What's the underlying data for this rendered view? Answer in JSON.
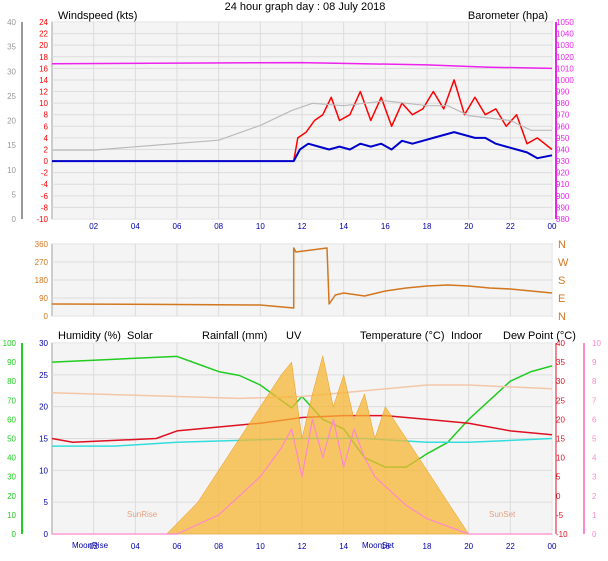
{
  "title": "24 hour graph day : 08 July 2018",
  "x_ticks": [
    "02",
    "04",
    "06",
    "08",
    "10",
    "12",
    "14",
    "16",
    "18",
    "20",
    "22",
    "00"
  ],
  "colors": {
    "windspeed": "#ff0000",
    "wind_avg": "#0000cc",
    "barometer": "#ee22ee",
    "wind_dir": "#d2771f",
    "humidity": "#22cc22",
    "solar": "#f7b734",
    "rainfall": "#0000aa",
    "uv": "#ff88cc",
    "temperature": "#dd1122",
    "indoor": "#f4c6a8",
    "dew_point": "#33dddd",
    "baro_shadow": "#bbbbbb"
  },
  "chart_data": [
    {
      "type": "line",
      "panel": "wind-baro",
      "left_axis_label": "Windspeed (kts)",
      "right_axis_label": "Barometer (hpa)",
      "left_ticks": [
        "24",
        "22",
        "20",
        "18",
        "16",
        "14",
        "12",
        "10",
        "8",
        "6",
        "4",
        "2",
        "0",
        "-2",
        "-4",
        "-6",
        "-8",
        "-10"
      ],
      "right_ticks": [
        "1050",
        "1040",
        "1030",
        "1020",
        "1010",
        "1000",
        "990",
        "980",
        "970",
        "960",
        "950",
        "940",
        "930",
        "920",
        "910",
        "900",
        "890",
        "880"
      ],
      "grey_axis_ticks": [
        "40",
        "35",
        "30",
        "25",
        "20",
        "15",
        "10",
        "5",
        "0"
      ],
      "ylim_left": [
        -10,
        24
      ],
      "ylim_right": [
        880,
        1050
      ],
      "xlim": [
        0,
        24
      ],
      "series": [
        {
          "key": "barometer",
          "axis": "right",
          "x": [
            0,
            6,
            12,
            18,
            21,
            24
          ],
          "y": [
            1014,
            1014.5,
            1015,
            1013,
            1011,
            1010
          ]
        },
        {
          "key": "gust",
          "axis": "left",
          "x": [
            0,
            11.6,
            11.8,
            12.2,
            12.6,
            13,
            13.4,
            13.8,
            14.3,
            14.8,
            15.3,
            15.8,
            16.3,
            16.8,
            17.3,
            17.8,
            18.3,
            18.8,
            19.3,
            19.8,
            20.3,
            20.8,
            21.3,
            21.8,
            22.3,
            22.8,
            23.3,
            24
          ],
          "y": [
            0,
            0,
            4,
            5,
            7,
            8,
            11,
            7,
            8,
            12,
            7,
            11,
            6,
            10,
            8,
            9,
            12,
            9,
            14,
            8,
            11,
            8,
            9,
            6,
            8,
            3,
            4,
            2
          ]
        },
        {
          "key": "average",
          "axis": "left",
          "x": [
            0,
            11.6,
            11.9,
            12.3,
            12.8,
            13.3,
            13.8,
            14.3,
            14.8,
            15.3,
            15.8,
            16.3,
            16.8,
            17.3,
            17.8,
            18.3,
            18.8,
            19.3,
            19.8,
            20.3,
            20.8,
            21.3,
            21.8,
            22.3,
            22.8,
            23.3,
            24
          ],
          "y": [
            0,
            0,
            2,
            3,
            2.5,
            2,
            2.5,
            2,
            3,
            2.5,
            3,
            2,
            3.5,
            3,
            3.5,
            4,
            4.5,
            5,
            4.5,
            4,
            4,
            3,
            2.5,
            2,
            1.5,
            0.5,
            1
          ]
        },
        {
          "key": "baro_shadow",
          "axis": "grey",
          "x": [
            0,
            2,
            5,
            8,
            10,
            11.5,
            12.5,
            14,
            16,
            18,
            19,
            20,
            22,
            23,
            24
          ],
          "y": [
            14,
            14,
            15,
            16,
            19,
            22,
            23.5,
            23,
            24,
            23,
            23,
            21,
            20,
            18,
            18
          ]
        }
      ]
    },
    {
      "type": "line",
      "panel": "wind-direction",
      "left_ticks": [
        "360",
        "270",
        "180",
        "90",
        "0"
      ],
      "right_ticks": [
        "N",
        "W",
        "S",
        "E",
        "N"
      ],
      "ylim": [
        0,
        360
      ],
      "xlim": [
        0,
        24
      ],
      "series": [
        {
          "key": "wind_dir",
          "x": [
            0,
            5,
            10,
            11.6,
            11.6,
            11.7,
            13.2,
            13.3,
            13.6,
            14,
            15,
            16,
            17,
            18,
            19,
            20,
            21,
            22,
            23,
            24
          ],
          "y": [
            60,
            58,
            55,
            40,
            340,
            320,
            340,
            60,
            105,
            115,
            100,
            125,
            140,
            150,
            155,
            150,
            140,
            135,
            125,
            115
          ]
        }
      ]
    },
    {
      "type": "area",
      "panel": "temp-humidity-solar",
      "legend": [
        "Humidity (%)",
        "Solar",
        "Rainfall (mm)",
        "UV",
        "Temperature (°C)",
        "Indoor",
        "Dew Point (°C)"
      ],
      "humidity_ticks": [
        "100",
        "90",
        "80",
        "70",
        "60",
        "50",
        "40",
        "30",
        "20",
        "10",
        "0"
      ],
      "left_ticks": [
        "30",
        "25",
        "20",
        "15",
        "10",
        "5",
        "0"
      ],
      "temp_ticks": [
        "40",
        "35",
        "30",
        "25",
        "20",
        "15",
        "10",
        "5",
        "0",
        "-5",
        "-10"
      ],
      "uv_ticks": [
        "10",
        "9",
        "8",
        "7",
        "6",
        "5",
        "4",
        "3",
        "2",
        "1",
        "0"
      ],
      "xlim": [
        0,
        24
      ],
      "ylim_temperature": [
        -10,
        40
      ],
      "ylim_humidity": [
        0,
        100
      ],
      "annotations": [
        "MoonRise",
        "SunRise",
        "MoonSet",
        "SunSet"
      ],
      "series": [
        {
          "key": "humidity",
          "x": [
            0,
            2,
            4,
            6,
            7,
            8,
            9,
            10,
            11,
            11.5,
            12,
            13,
            14,
            15,
            16,
            17,
            18,
            19,
            20,
            21,
            22,
            23,
            24
          ],
          "y": [
            90,
            91,
            92,
            93,
            89,
            85,
            83,
            78,
            70,
            66,
            72,
            60,
            55,
            40,
            35,
            35,
            42,
            48,
            60,
            70,
            80,
            85,
            88
          ]
        },
        {
          "key": "temperature",
          "x": [
            0,
            1,
            3,
            5,
            6,
            8,
            10,
            12,
            14,
            16,
            18,
            20,
            22,
            24
          ],
          "y": [
            15,
            14,
            14.5,
            15,
            17,
            18,
            19,
            20.5,
            21,
            21,
            20,
            19,
            17,
            16
          ]
        },
        {
          "key": "indoor",
          "x": [
            0,
            3,
            6,
            9,
            12,
            15,
            18,
            20,
            22,
            24
          ],
          "y": [
            27,
            26.5,
            26,
            25.5,
            26,
            27.5,
            29,
            29,
            28.5,
            28
          ]
        },
        {
          "key": "dew_point",
          "x": [
            0,
            3,
            6,
            9,
            12,
            15,
            18,
            20,
            22,
            24
          ],
          "y": [
            13,
            13,
            14,
            14.5,
            15,
            15,
            14,
            14,
            14.5,
            15
          ]
        },
        {
          "key": "solar",
          "x": [
            5.5,
            7,
            8,
            9,
            10,
            11,
            11.5,
            12,
            12.5,
            13,
            13.5,
            14,
            14.5,
            15,
            15.5,
            16,
            17,
            18,
            19,
            20
          ],
          "y": [
            0,
            5,
            10,
            15,
            20,
            25,
            27,
            15,
            22,
            28,
            20,
            25,
            18,
            22,
            15,
            20,
            15,
            10,
            5,
            0
          ]
        },
        {
          "key": "uv",
          "x": [
            0,
            6,
            8,
            10,
            11,
            11.5,
            12,
            12.5,
            13,
            13.5,
            14,
            14.5,
            15,
            15.5,
            16,
            17,
            18,
            20,
            24
          ],
          "y": [
            0,
            0,
            1,
            3,
            4.5,
            5.5,
            3,
            6,
            4,
            6,
            3.5,
            5.5,
            4,
            3,
            2.5,
            1.5,
            0.8,
            0,
            0
          ]
        }
      ]
    }
  ]
}
